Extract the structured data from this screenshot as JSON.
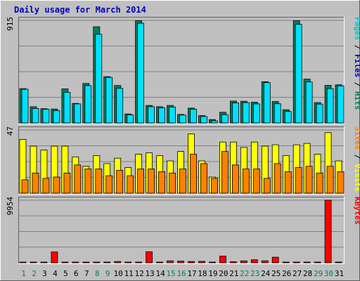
{
  "chart_data": {
    "type": "bar",
    "title": "Daily usage for March 2014",
    "categories": [
      "1",
      "2",
      "3",
      "4",
      "5",
      "6",
      "7",
      "8",
      "9",
      "10",
      "11",
      "12",
      "13",
      "14",
      "15",
      "16",
      "17",
      "18",
      "19",
      "20",
      "21",
      "22",
      "23",
      "24",
      "25",
      "26",
      "27",
      "28",
      "29",
      "30",
      "31"
    ],
    "weekend_days": [
      "1",
      "2",
      "8",
      "9",
      "15",
      "16",
      "22",
      "23",
      "29",
      "30"
    ],
    "panels": [
      {
        "id": "hits",
        "ymax_label": "915",
        "ymax": 915,
        "axis_labels": [
          {
            "text": "Pages",
            "color": "#00c8c8"
          },
          {
            "text": "Files",
            "color": "#0000c8"
          },
          {
            "text": "Hits",
            "color": "#00805c"
          }
        ],
        "series": [
          {
            "name": "Hits",
            "color": "#00805c",
            "values": [
              306,
              145,
              127,
              124,
              304,
              174,
              352,
              858,
              413,
              334,
              80,
              912,
              156,
              145,
              156,
              76,
              132,
              66,
              30,
              95,
              195,
              193,
              185,
              368,
              191,
              118,
              912,
              391,
              182,
              335,
              340
            ]
          },
          {
            "name": "Files",
            "color": "#00e0ff",
            "values": [
              300,
              129,
              122,
              110,
              273,
              170,
              333,
              791,
              406,
              309,
              72,
              890,
              145,
              134,
              142,
              70,
              123,
              57,
              19,
              74,
              178,
              181,
              170,
              360,
              171,
              102,
              880,
              366,
              168,
              306,
              331
            ]
          }
        ]
      },
      {
        "id": "visits",
        "ymax_label": "47",
        "ymax": 47,
        "axis_labels": [
          {
            "text": "Sites",
            "color": "#ff8000"
          },
          {
            "text": "Visits",
            "color": "#ffff00"
          }
        ],
        "series": [
          {
            "name": "Visits",
            "color": "#ffff00",
            "values": [
              40,
              35,
              32,
              35,
              35,
              27,
              20,
              28,
              22,
              26,
              19,
              29,
              30,
              28,
              24,
              31,
              44,
              24,
              12,
              38,
              38,
              34,
              38,
              35,
              36,
              28,
              36,
              37,
              29,
              45,
              24
            ]
          },
          {
            "name": "Sites",
            "color": "#ff8000",
            "values": [
              10,
              15,
              11,
              12,
              15,
              21,
              18,
              18,
              13,
              17,
              13,
              18,
              18,
              16,
              15,
              18,
              29,
              22,
              11,
              31,
              21,
              18,
              18,
              11,
              22,
              16,
              19,
              20,
              15,
              20,
              16
            ]
          }
        ]
      },
      {
        "id": "kbytes",
        "ymax_label": "9954",
        "ymax": 9954,
        "axis_labels": [
          {
            "text": "KBytes",
            "color": "#ff0000"
          }
        ],
        "series": [
          {
            "name": "KBytes",
            "color": "#ff0000",
            "values": [
              30,
              30,
              30,
              1720,
              30,
              30,
              30,
              30,
              30,
              200,
              30,
              30,
              1760,
              30,
              300,
              260,
              200,
              220,
              30,
              1060,
              160,
              300,
              480,
              310,
              880,
              30,
              30,
              30,
              30,
              9954,
              30
            ]
          }
        ]
      }
    ]
  }
}
